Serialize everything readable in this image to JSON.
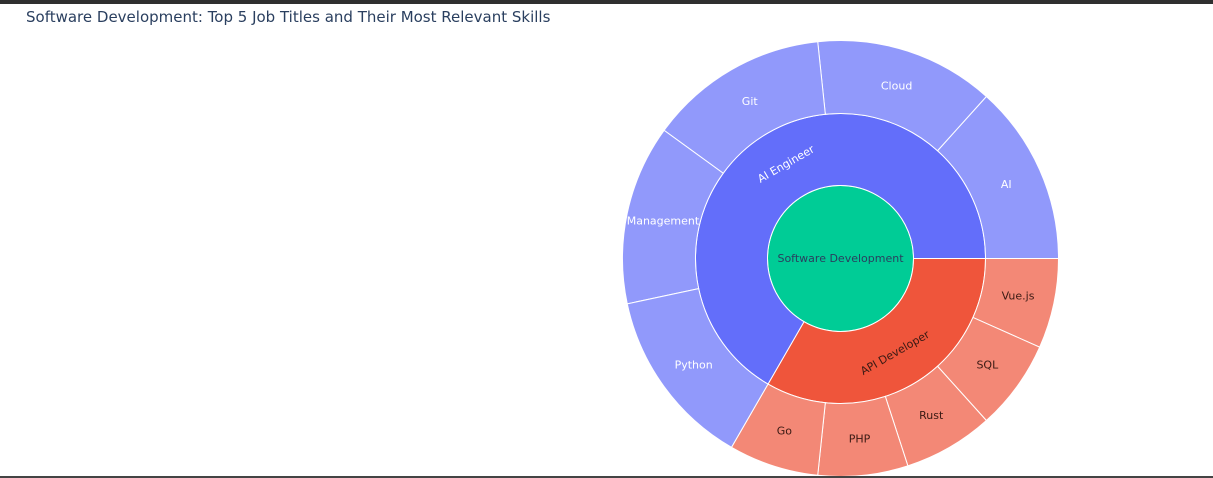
{
  "chart_data": {
    "type": "sunburst",
    "title": "Software Development: Top 5 Job Titles and Their Most Relevant Skills",
    "root": {
      "label": "Software Development",
      "color": "#00cc96"
    },
    "children": [
      {
        "label": "AI Engineer",
        "color": "#636efa",
        "leaf_color": "#9199fb",
        "skills": [
          {
            "label": "AI",
            "value": 1
          },
          {
            "label": "Cloud",
            "value": 1
          },
          {
            "label": "Git",
            "value": 1
          },
          {
            "label": "Management",
            "value": 1
          },
          {
            "label": "Python",
            "value": 1
          }
        ]
      },
      {
        "label": "API Developer",
        "color": "#ef553b",
        "leaf_color": "#f38876",
        "skills": [
          {
            "label": "Go",
            "value": 0.5
          },
          {
            "label": "PHP",
            "value": 0.5
          },
          {
            "label": "Rust",
            "value": 0.5
          },
          {
            "label": "SQL",
            "value": 0.5
          },
          {
            "label": "Vue.js",
            "value": 0.5
          }
        ]
      }
    ]
  }
}
